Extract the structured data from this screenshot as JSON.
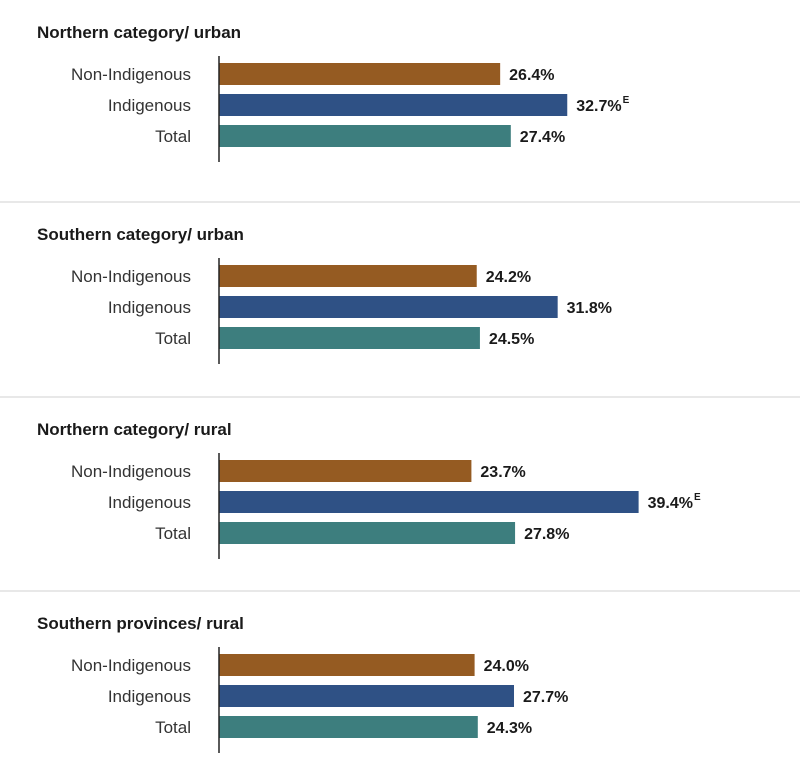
{
  "chart_data": {
    "type": "bar",
    "orientation": "horizontal",
    "unit": "%",
    "colors": {
      "Non-Indigenous": "#955b22",
      "Indigenous": "#2f5185",
      "Total": "#3d7e7e"
    },
    "panels": [
      {
        "title": "Northern category/ urban",
        "bars": [
          {
            "category": "Non-Indigenous",
            "value": 26.4,
            "label": "26.4%",
            "flag": ""
          },
          {
            "category": "Indigenous",
            "value": 32.7,
            "label": "32.7%",
            "flag": "E"
          },
          {
            "category": "Total",
            "value": 27.4,
            "label": "27.4%",
            "flag": ""
          }
        ]
      },
      {
        "title": "Southern category/ urban",
        "bars": [
          {
            "category": "Non-Indigenous",
            "value": 24.2,
            "label": "24.2%",
            "flag": ""
          },
          {
            "category": "Indigenous",
            "value": 31.8,
            "label": "31.8%",
            "flag": ""
          },
          {
            "category": "Total",
            "value": 24.5,
            "label": "24.5%",
            "flag": ""
          }
        ]
      },
      {
        "title": "Northern category/ rural",
        "bars": [
          {
            "category": "Non-Indigenous",
            "value": 23.7,
            "label": "23.7%",
            "flag": ""
          },
          {
            "category": "Indigenous",
            "value": 39.4,
            "label": "39.4%",
            "flag": "E"
          },
          {
            "category": "Total",
            "value": 27.8,
            "label": "27.8%",
            "flag": ""
          }
        ]
      },
      {
        "title": "Southern provinces/ rural",
        "bars": [
          {
            "category": "Non-Indigenous",
            "value": 24.0,
            "label": "24.0%",
            "flag": ""
          },
          {
            "category": "Indigenous",
            "value": 27.7,
            "label": "27.7%",
            "flag": ""
          },
          {
            "category": "Total",
            "value": 24.3,
            "label": "24.3%",
            "flag": ""
          }
        ]
      }
    ]
  }
}
